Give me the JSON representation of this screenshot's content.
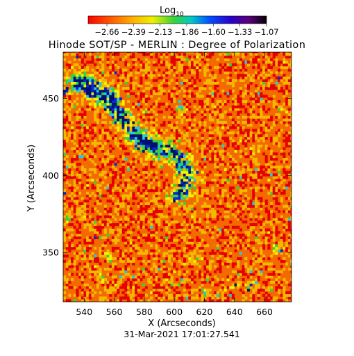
{
  "chart_data": {
    "type": "heatmap",
    "title": "Hinode SOT/SP - MERLIN : Degree of Polarization",
    "xlabel": "X (Arcseconds)",
    "ylabel": "Y (Arcseconds)",
    "timestamp": "31-Mar-2021 17:01:27.541",
    "xlim": [
      526,
      678
    ],
    "ylim": [
      318,
      480
    ],
    "x_ticks": [
      540,
      560,
      580,
      600,
      620,
      640,
      660
    ],
    "y_ticks": [
      350,
      400,
      450
    ],
    "colorbar": {
      "label_base": "Log",
      "label_sub": "10",
      "tick_labels": [
        "-2.66",
        "-2.39",
        "-2.13",
        "-1.86",
        "-1.60",
        "-1.33",
        "-1.07"
      ],
      "colormap": "rainbow"
    },
    "colors": {
      "low": "#e60000",
      "background": "#f26a00",
      "mid": "#f5b800",
      "yellow": "#f2f200",
      "green": "#3ad23a",
      "cyan": "#28c8d8",
      "blue": "#0a28d2",
      "navy": "#001070"
    }
  }
}
